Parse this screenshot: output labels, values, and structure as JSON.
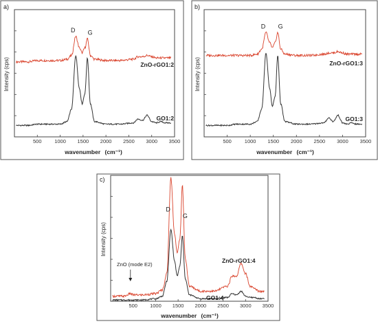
{
  "chart_data": [
    {
      "panel": "a)",
      "type": "line",
      "xlabel": "wavenumber",
      "xlabel_unit": "(cm⁻¹)",
      "ylabel": "Intensity (cps)",
      "x_ticks": [
        500,
        1000,
        1500,
        2000,
        2500,
        3000,
        3500
      ],
      "xlim": [
        0,
        3500
      ],
      "ylim": [
        0,
        100
      ],
      "peak_labels": [
        {
          "text": "D",
          "x": 1340
        },
        {
          "text": "G",
          "x": 1595
        }
      ],
      "series": [
        {
          "name": "ZnO-rGO1:2",
          "color": "#d9422b",
          "x": [
            50,
            300,
            500,
            700,
            1000,
            1150,
            1250,
            1340,
            1420,
            1480,
            1540,
            1595,
            1660,
            1750,
            2000,
            2300,
            2600,
            2700,
            2800,
            2900,
            3000,
            3100,
            3200,
            3300,
            3400
          ],
          "y": [
            59,
            59,
            60,
            60,
            60,
            61,
            64,
            79,
            70,
            66,
            70,
            77,
            64,
            61,
            60,
            60,
            61,
            63,
            63,
            64,
            63,
            62,
            62,
            62,
            62
          ]
        },
        {
          "name": "GO1:2",
          "color": "#333333",
          "x": [
            50,
            300,
            500,
            700,
            1000,
            1150,
            1250,
            1340,
            1420,
            1480,
            1540,
            1595,
            1660,
            1750,
            2000,
            2300,
            2600,
            2700,
            2800,
            2900,
            3000,
            3100,
            3200,
            3300,
            3400
          ],
          "y": [
            9,
            9,
            10,
            10,
            10,
            12,
            22,
            64,
            38,
            26,
            34,
            62,
            26,
            12,
            10,
            10,
            11,
            14,
            13,
            17,
            12,
            11,
            12,
            11,
            11
          ]
        }
      ]
    },
    {
      "panel": "b)",
      "type": "line",
      "xlabel": "wavenumber",
      "xlabel_unit": "(cm⁻¹)",
      "ylabel": "Intensity (cps)",
      "x_ticks": [
        500,
        1000,
        1500,
        2000,
        2500,
        3000,
        3500
      ],
      "xlim": [
        0,
        3500
      ],
      "ylim": [
        0,
        100
      ],
      "peak_labels": [
        {
          "text": "D",
          "x": 1340
        },
        {
          "text": "G",
          "x": 1595
        }
      ],
      "series": [
        {
          "name": "ZnO-rGO1:3",
          "color": "#d9422b",
          "x": [
            50,
            300,
            500,
            700,
            1000,
            1150,
            1250,
            1340,
            1420,
            1480,
            1540,
            1595,
            1660,
            1750,
            2000,
            2300,
            2600,
            2700,
            2800,
            2900,
            3000,
            3100,
            3200,
            3300,
            3400
          ],
          "y": [
            64,
            64,
            64,
            64,
            64,
            65,
            69,
            82,
            74,
            70,
            74,
            82,
            69,
            65,
            64,
            64,
            65,
            66,
            66,
            67,
            66,
            65,
            65,
            65,
            65
          ]
        },
        {
          "name": "GO1:3",
          "color": "#333333",
          "x": [
            50,
            300,
            500,
            700,
            1000,
            1150,
            1250,
            1340,
            1420,
            1480,
            1540,
            1595,
            1660,
            1750,
            2000,
            2300,
            2600,
            2700,
            2800,
            2900,
            3000,
            3100,
            3200,
            3300,
            3400
          ],
          "y": [
            9,
            9,
            9,
            10,
            10,
            12,
            22,
            66,
            38,
            24,
            32,
            64,
            26,
            12,
            10,
            10,
            11,
            15,
            12,
            17,
            11,
            10,
            11,
            10,
            10
          ]
        }
      ]
    },
    {
      "panel": "c)",
      "type": "line",
      "xlabel": "wavenumber",
      "xlabel_unit": "(cm⁻¹)",
      "ylabel": "Intensity (cps)",
      "x_ticks": [
        500,
        1000,
        1500,
        2000,
        2500,
        3000,
        3500
      ],
      "xlim": [
        0,
        3500
      ],
      "ylim": [
        0,
        100
      ],
      "peak_labels": [
        {
          "text": "D",
          "x": 1340
        },
        {
          "text": "G",
          "x": 1595
        }
      ],
      "annotation": {
        "text": "ZnO (mode E2)",
        "x": 440
      },
      "series": [
        {
          "name": "ZnO-rGO1:4",
          "color": "#d9422b",
          "x": [
            50,
            300,
            440,
            500,
            700,
            1000,
            1150,
            1250,
            1340,
            1420,
            1480,
            1540,
            1595,
            1660,
            1750,
            2000,
            2300,
            2600,
            2700,
            2800,
            2900,
            3000,
            3100,
            3200,
            3300,
            3400
          ],
          "y": [
            4,
            4,
            6,
            5,
            5,
            6,
            9,
            22,
            98,
            54,
            38,
            50,
            92,
            34,
            12,
            8,
            8,
            12,
            20,
            20,
            30,
            22,
            12,
            10,
            8,
            8
          ]
        },
        {
          "name": "GO1:4",
          "color": "#333333",
          "x": [
            50,
            300,
            440,
            500,
            700,
            1000,
            1150,
            1250,
            1340,
            1420,
            1480,
            1540,
            1595,
            1660,
            1750,
            2000,
            2300,
            2600,
            2700,
            2800,
            2900,
            3000,
            3100,
            3200,
            3300,
            3400
          ],
          "y": [
            1,
            1,
            1,
            1,
            1,
            2,
            4,
            16,
            57,
            32,
            20,
            28,
            52,
            18,
            5,
            2,
            2,
            3,
            6,
            5,
            8,
            4,
            3,
            3,
            2,
            2
          ]
        }
      ]
    }
  ]
}
